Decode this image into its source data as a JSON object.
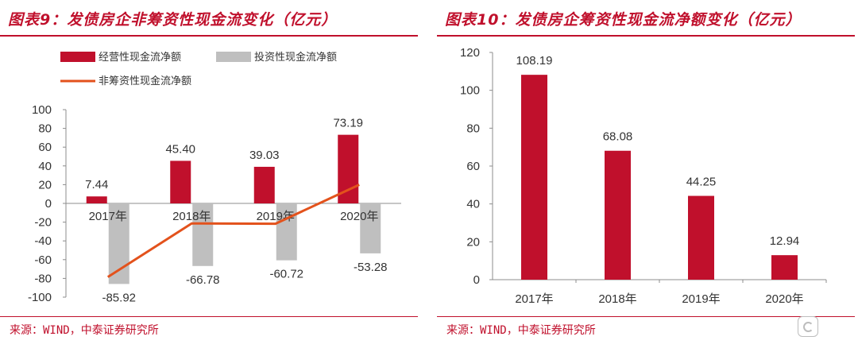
{
  "colors": {
    "accent": "#c0102c",
    "bar_red": "#c0102c",
    "bar_gray": "#bfbfbf",
    "line_orange": "#e3521c"
  },
  "left": {
    "title": "图表9：发债房企非筹资性现金流变化（亿元）",
    "source": "来源：WIND，中泰证券研究所"
  },
  "right": {
    "title": "图表10：发债房企筹资性现金流净额变化（亿元）",
    "source": "来源：WIND，中泰证券研究所"
  },
  "chart_data": [
    {
      "type": "bar",
      "categories": [
        "2017年",
        "2018年",
        "2019年",
        "2020年"
      ],
      "series": [
        {
          "name": "经营性现金流净额",
          "type": "bar",
          "color": "#c0102c",
          "values": [
            7.44,
            45.4,
            39.03,
            73.19
          ],
          "labels": [
            "7.44",
            "45.40",
            "39.03",
            "73.19"
          ]
        },
        {
          "name": "投资性现金流净额",
          "type": "bar",
          "color": "#bfbfbf",
          "values": [
            -85.92,
            -66.78,
            -60.72,
            -53.28
          ],
          "labels": [
            "-85.92",
            "-66.78",
            "-60.72",
            "-53.28"
          ]
        },
        {
          "name": "非筹资性现金流净额",
          "type": "line",
          "color": "#e3521c",
          "values": [
            -78.48,
            -21.38,
            -21.69,
            19.91
          ]
        }
      ],
      "ylim": [
        -100,
        100
      ],
      "yticks": [
        "100",
        "80",
        "60",
        "40",
        "20",
        "0",
        "-20",
        "-40",
        "-60",
        "-80",
        "-100"
      ],
      "legend": "top"
    },
    {
      "type": "bar",
      "categories": [
        "2017年",
        "2018年",
        "2019年",
        "2020年"
      ],
      "series": [
        {
          "type": "bar",
          "color": "#c0102c",
          "values": [
            108.19,
            68.08,
            44.25,
            12.94
          ],
          "labels": [
            "108.19",
            "68.08",
            "44.25",
            "12.94"
          ]
        }
      ],
      "ylim": [
        0,
        120
      ],
      "yticks": [
        "120",
        "100",
        "80",
        "60",
        "40",
        "20",
        "0"
      ]
    }
  ]
}
